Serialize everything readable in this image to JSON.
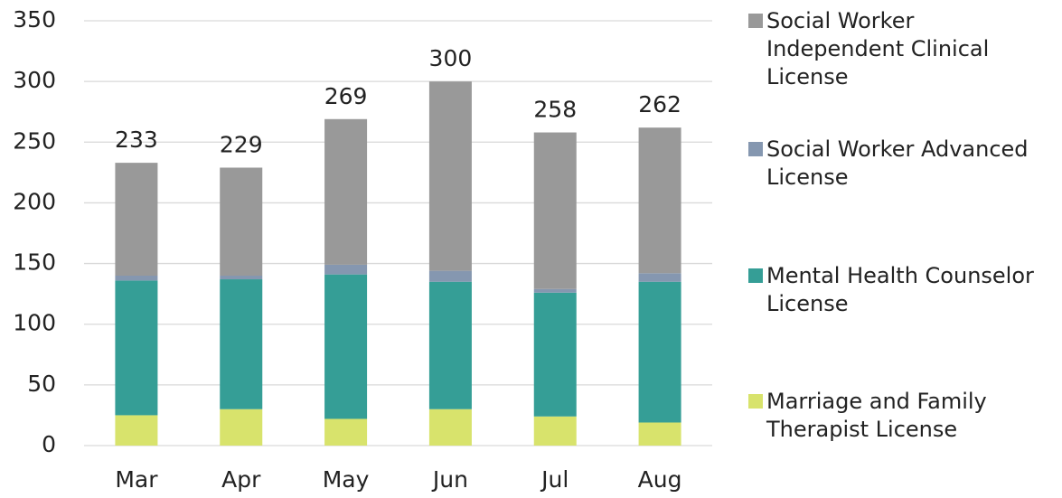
{
  "chart_data": {
    "type": "stacked_bar",
    "categories": [
      "Mar",
      "Apr",
      "May",
      "Jun",
      "Jul",
      "Aug"
    ],
    "series": [
      {
        "name": "Marriage and Family Therapist License",
        "color": "#d8e36c",
        "values": [
          25,
          30,
          22,
          30,
          24,
          19
        ]
      },
      {
        "name": "Mental Health Counselor License",
        "color": "#359e96",
        "values": [
          111,
          107,
          119,
          105,
          102,
          116
        ]
      },
      {
        "name": "Social Worker Advanced License",
        "color": "#8597b0",
        "values": [
          4,
          3,
          8,
          9,
          3,
          7
        ]
      },
      {
        "name": "Social Worker Independent Clinical License",
        "color": "#999999",
        "values": [
          93,
          89,
          120,
          156,
          129,
          120
        ]
      }
    ],
    "totals": [
      233,
      229,
      269,
      300,
      258,
      262
    ],
    "ylim": [
      0,
      350
    ],
    "yticks": [
      0,
      50,
      100,
      150,
      200,
      250,
      300,
      350
    ],
    "grid": true
  }
}
